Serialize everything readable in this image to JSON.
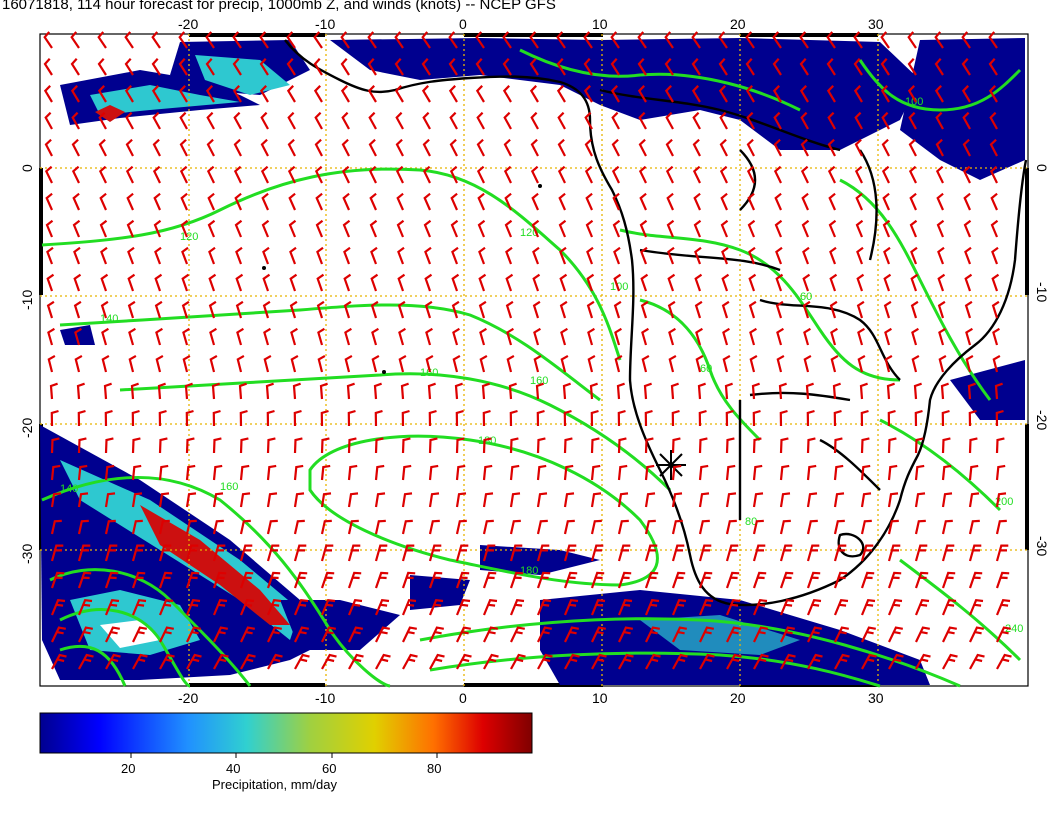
{
  "title": "16071818, 114 hour forecast for precip, 1000mb Z, and winds (knots) -- NCEP GFS",
  "axes": {
    "lon_ticks": [
      "-20",
      "-10",
      "0",
      "10",
      "20",
      "30"
    ],
    "lat_ticks": [
      "0",
      "-10",
      "-20",
      "-30"
    ],
    "lon_range": [
      -30,
      40
    ],
    "lat_range": [
      -40,
      10
    ]
  },
  "contour_labels": [
    "120",
    "140",
    "160",
    "160",
    "180",
    "180",
    "160",
    "140",
    "120",
    "100",
    "60",
    "80",
    "200",
    "240",
    "100",
    "60"
  ],
  "colorbar": {
    "ticks": [
      "20",
      "40",
      "60",
      "80"
    ],
    "label": "Precipitation, mm/day",
    "range": [
      0,
      100
    ]
  },
  "colors": {
    "frame": "#000000",
    "grid": "#e8b400",
    "contour": "#22dd22",
    "wind_barb": "#dd0000",
    "coast": "#000000",
    "precip_low": "#00008f",
    "precip_mid": "#2ec8d0",
    "precip_high": "#cc1010"
  },
  "marker": "storm-center-icon"
}
